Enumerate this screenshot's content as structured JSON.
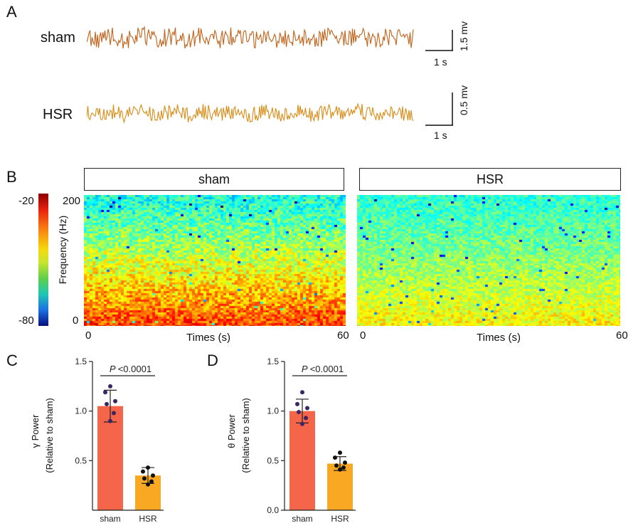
{
  "panels": {
    "a": "A",
    "b": "B",
    "c": "C",
    "d": "D"
  },
  "traces": [
    {
      "label": "sham",
      "scale_v": "1.5 mv",
      "scale_t": "1 s",
      "color": "#c0621a"
    },
    {
      "label": "HSR",
      "scale_v": "0.5 mv",
      "scale_t": "1 s",
      "color": "#d88c17"
    }
  ],
  "spectrogram": {
    "colorbar": {
      "max_label": "-20",
      "min_label": "-80",
      "max_value": -20,
      "min_value": -80
    },
    "ylabel": "Frequency (Hz)",
    "y_top": "200",
    "y_bottom": "0",
    "panels": [
      {
        "title": "sham",
        "xlabel": "Times (s)",
        "x_start": "0",
        "x_end": "60"
      },
      {
        "title": "HSR",
        "xlabel": "Times (s)",
        "x_start": "0",
        "x_end": "60"
      }
    ]
  },
  "chart_data": [
    {
      "type": "bar",
      "panel": "C",
      "categories": [
        "sham",
        "HSR"
      ],
      "values": [
        1.05,
        0.35
      ],
      "errors": [
        0.16,
        0.08
      ],
      "points": [
        [
          1.25,
          1.19,
          1.1,
          1.07,
          0.98,
          0.9
        ],
        [
          0.43,
          0.39,
          0.35,
          0.32,
          0.29,
          0.26
        ]
      ],
      "colors": [
        "#f4654a",
        "#f9a823"
      ],
      "ylabel": "γ Power",
      "ylabel2": "(Relative to sham)",
      "ylim": [
        0.0,
        1.5
      ],
      "ticks": [
        "0.5",
        "1.0",
        "1.5"
      ],
      "tick_values": [
        0.5,
        1.0,
        1.5
      ],
      "annotation": {
        "p": "P",
        "text": "<0.0001"
      }
    },
    {
      "type": "bar",
      "panel": "D",
      "categories": [
        "sham",
        "HSR"
      ],
      "values": [
        1.0,
        0.47
      ],
      "errors": [
        0.12,
        0.07
      ],
      "points": [
        [
          1.19,
          1.07,
          1.03,
          0.99,
          0.93,
          0.87
        ],
        [
          0.58,
          0.53,
          0.48,
          0.45,
          0.43,
          0.41
        ]
      ],
      "colors": [
        "#f4654a",
        "#f9a823"
      ],
      "ylabel": "θ Power",
      "ylabel2": "(Relative to sham)",
      "ylim": [
        0.0,
        1.5
      ],
      "ticks": [
        "0.0",
        "0.5",
        "1.0",
        "1.5"
      ],
      "tick_values": [
        0.0,
        0.5,
        1.0,
        1.5
      ],
      "annotation": {
        "p": "P",
        "text": "<0.0001"
      }
    }
  ]
}
